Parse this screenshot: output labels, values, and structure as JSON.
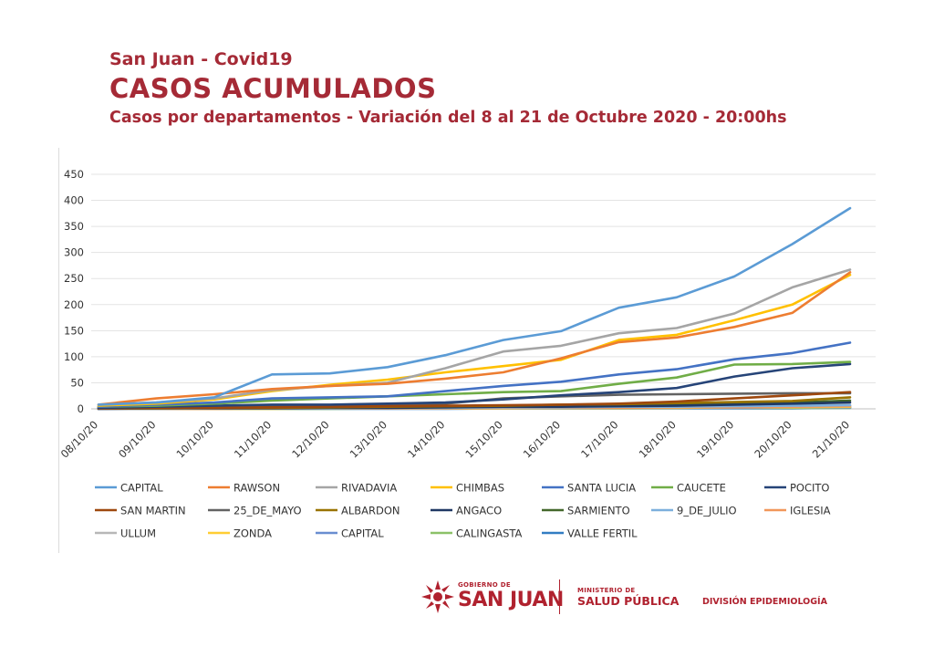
{
  "header": {
    "top_title": "San Juan - Covid19",
    "main_title": "CASOS ACUMULADOS",
    "subtitle": "Casos por departamentos - Variación del 8 al 21 de Octubre 2020 - 20:00hs"
  },
  "footer": {
    "gov_small": "GOBIERNO DE",
    "gov_big": "SAN JUAN",
    "ministry_small": "MINISTERIO DE",
    "ministry_big": "SALUD PÚBLICA",
    "division": "DIVISIÓN EPIDEMIOLOGÍA",
    "brand_color": "#b0222f"
  },
  "chart_data": {
    "type": "line",
    "title": "",
    "xlabel": "",
    "ylabel": "",
    "ylim": [
      0,
      450
    ],
    "yticks": [
      0,
      50,
      100,
      150,
      200,
      250,
      300,
      350,
      400,
      450
    ],
    "grid": true,
    "legend_position": "bottom",
    "categories": [
      "08/10/20",
      "09/10/20",
      "10/10/20",
      "11/10/20",
      "12/10/20",
      "13/10/20",
      "14/10/20",
      "15/10/20",
      "16/10/20",
      "17/10/20",
      "18/10/20",
      "19/10/20",
      "20/10/20",
      "21/10/20"
    ],
    "series": [
      {
        "name": "CAPITAL",
        "color": "#5b9bd5",
        "values": [
          8,
          12,
          22,
          66,
          68,
          80,
          103,
          132,
          149,
          194,
          214,
          254,
          316,
          385
        ]
      },
      {
        "name": "RAWSON",
        "color": "#ed7d31",
        "values": [
          8,
          20,
          28,
          38,
          44,
          48,
          58,
          70,
          97,
          128,
          137,
          157,
          184,
          262
        ]
      },
      {
        "name": "RIVADAVIA",
        "color": "#a5a5a5",
        "values": [
          8,
          12,
          20,
          36,
          44,
          50,
          78,
          110,
          121,
          145,
          155,
          183,
          233,
          267
        ]
      },
      {
        "name": "CHIMBAS",
        "color": "#ffc000",
        "values": [
          6,
          10,
          18,
          34,
          46,
          56,
          70,
          82,
          94,
          132,
          142,
          170,
          200,
          257
        ]
      },
      {
        "name": "SANTA LUCIA",
        "color": "#4472c4",
        "values": [
          4,
          8,
          12,
          20,
          22,
          24,
          34,
          44,
          52,
          66,
          76,
          95,
          107,
          127
        ]
      },
      {
        "name": "CAUCETE",
        "color": "#70ad47",
        "values": [
          4,
          6,
          10,
          16,
          20,
          24,
          28,
          32,
          34,
          48,
          60,
          85,
          86,
          90
        ]
      },
      {
        "name": "POCITO",
        "color": "#264478",
        "values": [
          2,
          4,
          6,
          8,
          8,
          10,
          12,
          18,
          26,
          32,
          40,
          62,
          78,
          86
        ]
      },
      {
        "name": "SAN MARTIN",
        "color": "#9e480e",
        "values": [
          1,
          2,
          2,
          3,
          4,
          5,
          6,
          7,
          8,
          10,
          14,
          20,
          26,
          32
        ]
      },
      {
        "name": "25_DE_MAYO",
        "color": "#636363",
        "values": [
          1,
          2,
          3,
          4,
          5,
          6,
          10,
          20,
          24,
          27,
          28,
          29,
          30,
          30
        ]
      },
      {
        "name": "ALBARDON",
        "color": "#997300",
        "values": [
          1,
          1,
          2,
          2,
          3,
          4,
          5,
          6,
          8,
          9,
          11,
          13,
          15,
          22
        ]
      },
      {
        "name": "ANGACO",
        "color": "#1f3864",
        "values": [
          0,
          1,
          1,
          1,
          2,
          2,
          3,
          4,
          4,
          5,
          6,
          8,
          10,
          12
        ]
      },
      {
        "name": "SARMIENTO",
        "color": "#43682b",
        "values": [
          1,
          1,
          2,
          2,
          3,
          4,
          4,
          5,
          6,
          7,
          8,
          10,
          12,
          16
        ]
      },
      {
        "name": "9_DE_JULIO",
        "color": "#7cafdd",
        "values": [
          0,
          0,
          1,
          1,
          1,
          2,
          2,
          3,
          3,
          4,
          4,
          5,
          6,
          7
        ]
      },
      {
        "name": "IGLESIA",
        "color": "#f1975a",
        "values": [
          0,
          0,
          0,
          1,
          1,
          1,
          1,
          2,
          2,
          2,
          3,
          3,
          4,
          5
        ]
      },
      {
        "name": "ULLUM",
        "color": "#b7b7b7",
        "values": [
          0,
          0,
          1,
          1,
          1,
          1,
          2,
          2,
          2,
          3,
          3,
          4,
          4,
          6
        ]
      },
      {
        "name": "ZONDA",
        "color": "#ffcd33",
        "values": [
          0,
          0,
          0,
          0,
          1,
          1,
          1,
          1,
          2,
          2,
          2,
          3,
          3,
          4
        ]
      },
      {
        "name": "CAPITAL",
        "color": "#698ed0",
        "values": [
          0,
          0,
          0,
          1,
          1,
          1,
          1,
          1,
          2,
          2,
          2,
          2,
          3,
          3
        ]
      },
      {
        "name": "CALINGASTA",
        "color": "#8cc168",
        "values": [
          0,
          0,
          0,
          0,
          0,
          1,
          1,
          1,
          1,
          1,
          2,
          2,
          2,
          2
        ]
      },
      {
        "name": "VALLE FERTIL",
        "color": "#327dc2",
        "values": [
          0,
          0,
          0,
          0,
          0,
          0,
          0,
          1,
          1,
          1,
          1,
          1,
          1,
          2
        ]
      }
    ]
  }
}
